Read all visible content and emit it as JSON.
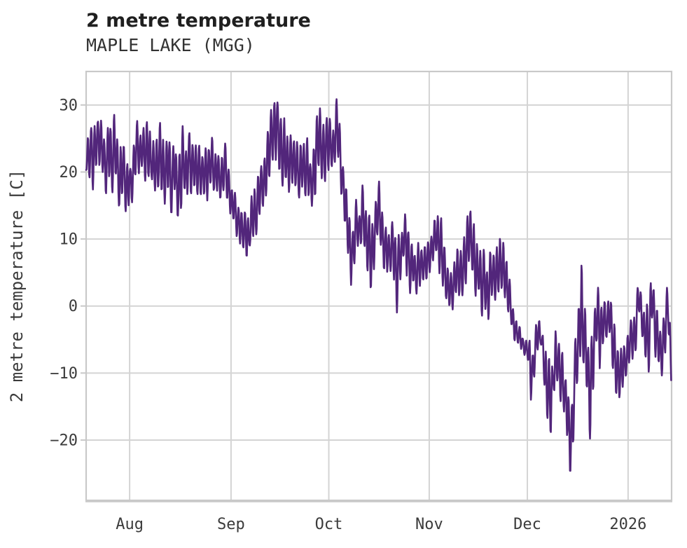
{
  "header": {
    "title": "2 metre temperature",
    "subtitle": "MAPLE LAKE (MGG)"
  },
  "chart_data": {
    "type": "line",
    "title": "2 metre temperature",
    "subtitle": "MAPLE LAKE (MGG)",
    "xlabel": "",
    "ylabel": "2 metre temperature [C]",
    "grid": true,
    "legend": "none",
    "line_color": "#52267b",
    "grid_color": "#d4d4d4",
    "spine_color": "#c9c9c9",
    "tick_label_color": "#3b3b3b",
    "ylim": [
      -29,
      35
    ],
    "y_ticks": [
      {
        "value": 30,
        "label": "30"
      },
      {
        "value": 20,
        "label": "20"
      },
      {
        "value": 10,
        "label": "10"
      },
      {
        "value": 0,
        "label": "0"
      },
      {
        "value": -10,
        "label": "−10"
      },
      {
        "value": -20,
        "label": "−20"
      }
    ],
    "x_span_days": [
      0,
      179
    ],
    "x_ticks": [
      {
        "day": 13.3,
        "label": "Aug"
      },
      {
        "day": 44.3,
        "label": "Sep"
      },
      {
        "day": 74.2,
        "label": "Oct"
      },
      {
        "day": 104.9,
        "label": "Nov"
      },
      {
        "day": 134.9,
        "label": "Dec"
      },
      {
        "day": 165.7,
        "label": "2026"
      }
    ],
    "series_unit": "C",
    "daily_envelope": {
      "note": "per-day [min,max] temperature (C) read from the plot; day 0 = left edge (~mid-July), day 179 = right edge (~mid-January)",
      "min": [
        19,
        15,
        14.5,
        16,
        17,
        16,
        15,
        16,
        15,
        16,
        15,
        14,
        13.5,
        13.4,
        15,
        17,
        17,
        18,
        17,
        17,
        18,
        17,
        16,
        16,
        15,
        15,
        14,
        13.5,
        13,
        13,
        14,
        15,
        15,
        14.5,
        14,
        13.8,
        14,
        15,
        16,
        16,
        16,
        16,
        15,
        15,
        13.5,
        11,
        9,
        7,
        6.5,
        6,
        6.5,
        8,
        9,
        11,
        13,
        15,
        17,
        18,
        19,
        20,
        18,
        17,
        16,
        15,
        14,
        13.5,
        13,
        12.5,
        13,
        14,
        15,
        16,
        17,
        18,
        18,
        18,
        19,
        19,
        15,
        12,
        5,
        -0.2,
        4,
        6,
        7,
        7,
        1,
        -2,
        4,
        8,
        6,
        4,
        5,
        5,
        2,
        -2,
        2,
        5,
        3,
        1,
        0.8,
        1,
        2,
        3,
        3.5,
        4,
        4.5,
        5,
        2,
        1,
        0,
        -1,
        -2.6,
        -1,
        0,
        1,
        2,
        3,
        2,
        1,
        -1,
        -2,
        -3,
        -2.8,
        -1,
        0,
        1,
        2,
        0,
        -1,
        -4,
        -6,
        -6.5,
        -7,
        -7.5,
        -8,
        -16.3,
        -12,
        -8,
        -6,
        -12,
        -18,
        -21.8,
        -16,
        -12,
        -15,
        -18,
        -22.6,
        -26.6,
        -22,
        -14,
        -12,
        -10,
        -12,
        -20,
        -16,
        -8,
        -11,
        -7,
        -5,
        -8,
        -11,
        -15,
        -15.5,
        -14,
        -12,
        -10,
        -9,
        -8,
        -4,
        -6,
        -10,
        -11,
        -4,
        -8,
        -11,
        -12,
        -9,
        -7,
        -12.5
      ],
      "max": [
        24,
        26,
        27,
        28,
        30.5,
        28,
        27.5,
        29,
        31.5,
        30,
        28,
        26,
        24,
        22,
        25,
        27,
        28.5,
        29.5,
        29,
        30,
        28.5,
        28,
        29,
        29.5,
        28,
        27,
        26.5,
        26,
        25,
        26,
        28,
        29.5,
        28,
        27,
        25,
        24,
        25,
        26,
        26.5,
        26,
        26.5,
        25,
        24.5,
        24,
        22,
        20,
        18,
        15.5,
        15,
        15,
        16,
        17,
        19,
        21.5,
        24,
        27,
        29,
        30,
        31,
        32.3,
        30,
        28,
        27,
        26,
        26,
        26,
        26,
        25.5,
        26,
        27,
        28,
        29,
        30,
        31,
        29.5,
        29,
        30,
        32.4,
        25,
        22,
        17,
        15,
        16,
        17,
        17.5,
        19.5,
        16,
        15,
        18,
        20.6,
        20,
        15,
        15,
        14,
        13,
        12,
        12.5,
        13.9,
        17.6,
        14,
        10,
        10,
        10,
        10.5,
        11,
        11,
        12,
        14,
        16.9,
        10,
        8,
        7,
        6,
        8,
        11.3,
        12,
        14,
        21.1,
        14,
        12.4,
        11,
        10,
        9,
        9,
        9.5,
        10,
        12,
        13.9,
        10,
        8,
        2,
        0,
        -2,
        -3,
        -4,
        -4,
        -5,
        -4,
        0,
        -1.3,
        -3,
        -5,
        -8,
        -4,
        -1.6,
        -4,
        -6,
        -10,
        -12,
        -8,
        -2,
        7.9,
        5,
        4.7,
        -3,
        -1,
        4.6,
        2,
        3,
        2,
        3.3,
        2,
        -4,
        -6,
        -6,
        -6,
        -2,
        0,
        1,
        6.2,
        3,
        0,
        2,
        6,
        4,
        -2,
        -4,
        0,
        5.9,
        -10
      ]
    }
  }
}
